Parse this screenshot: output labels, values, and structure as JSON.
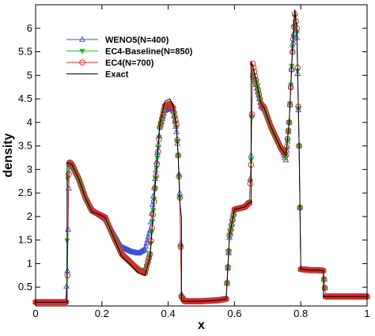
{
  "chart_data": {
    "type": "line",
    "title": "",
    "xlabel": "x",
    "ylabel": "density",
    "xlim": [
      0,
      1
    ],
    "ylim": [
      0.1,
      6.5
    ],
    "xticks": [
      "0",
      "0.2",
      "0.4",
      "0.6",
      "0.8",
      "1"
    ],
    "xtick_values": [
      0,
      0.2,
      0.4,
      0.6,
      0.8,
      1
    ],
    "yticks": [
      "0.5",
      "1",
      "1.5",
      "2",
      "2.5",
      "3",
      "3.5",
      "4",
      "4.5",
      "5",
      "5.5",
      "6"
    ],
    "ytick_values": [
      0.5,
      1,
      1.5,
      2,
      2.5,
      3,
      3.5,
      4,
      4.5,
      5,
      5.5,
      6
    ],
    "grid": false,
    "legend_position": "top-left",
    "series": [
      {
        "name": "WENO5(N=400)",
        "color": "#3a4fd6",
        "marker": "triangle-up",
        "x": [
          0,
          0.05,
          0.09,
          0.096,
          0.1,
          0.103,
          0.11,
          0.13,
          0.15,
          0.17,
          0.19,
          0.21,
          0.23,
          0.26,
          0.29,
          0.31,
          0.33,
          0.345,
          0.36,
          0.375,
          0.39,
          0.405,
          0.415,
          0.425,
          0.43,
          0.435,
          0.44,
          0.45,
          0.5,
          0.55,
          0.575,
          0.585,
          0.6,
          0.63,
          0.645,
          0.65,
          0.655,
          0.665,
          0.68,
          0.69,
          0.71,
          0.74,
          0.755,
          0.765,
          0.775,
          0.782,
          0.788,
          0.795,
          0.8,
          0.83,
          0.85,
          0.868,
          0.875,
          0.9,
          1
        ],
        "y": [
          0.18,
          0.18,
          0.18,
          0.85,
          2.6,
          3.1,
          3.08,
          2.82,
          2.45,
          2.15,
          2.05,
          1.95,
          1.72,
          1.35,
          1.25,
          1.22,
          1.3,
          1.7,
          2.8,
          3.9,
          4.25,
          4.32,
          4.25,
          3.8,
          3.3,
          2.5,
          0.35,
          0.2,
          0.2,
          0.22,
          0.25,
          1.55,
          2.15,
          2.2,
          2.3,
          3.3,
          5.0,
          4.8,
          4.35,
          4.28,
          3.95,
          3.5,
          3.2,
          4.0,
          5.5,
          6.1,
          5.8,
          3.5,
          0.88,
          0.86,
          0.86,
          0.85,
          0.3,
          0.3,
          0.3
        ]
      },
      {
        "name": "EC4-Baseline(N=850)",
        "color": "#1bbf2f",
        "marker": "triangle-down",
        "x": [
          0,
          0.05,
          0.093,
          0.097,
          0.1,
          0.104,
          0.11,
          0.13,
          0.15,
          0.17,
          0.19,
          0.21,
          0.23,
          0.26,
          0.29,
          0.31,
          0.33,
          0.345,
          0.36,
          0.375,
          0.39,
          0.405,
          0.415,
          0.425,
          0.43,
          0.435,
          0.44,
          0.45,
          0.5,
          0.55,
          0.575,
          0.585,
          0.6,
          0.63,
          0.645,
          0.65,
          0.655,
          0.665,
          0.68,
          0.69,
          0.71,
          0.74,
          0.755,
          0.765,
          0.775,
          0.782,
          0.788,
          0.795,
          0.8,
          0.83,
          0.85,
          0.868,
          0.875,
          0.9,
          1
        ],
        "y": [
          0.18,
          0.18,
          0.18,
          2.8,
          3.1,
          3.15,
          3.1,
          2.8,
          2.4,
          2.12,
          2.05,
          1.98,
          1.65,
          1.2,
          1.0,
          0.88,
          0.82,
          1.2,
          2.6,
          3.9,
          4.35,
          4.4,
          4.3,
          3.9,
          3.3,
          2.4,
          0.3,
          0.2,
          0.2,
          0.22,
          0.25,
          1.6,
          2.15,
          2.2,
          2.3,
          3.2,
          5.0,
          4.85,
          4.4,
          4.3,
          3.9,
          3.45,
          3.25,
          4.0,
          5.6,
          6.25,
          5.9,
          3.5,
          0.88,
          0.86,
          0.86,
          0.85,
          0.3,
          0.3,
          0.3
        ]
      },
      {
        "name": "EC4(N=700)",
        "color": "#d62a2a",
        "marker": "circle",
        "x": [
          0,
          0.05,
          0.092,
          0.096,
          0.1,
          0.103,
          0.11,
          0.13,
          0.15,
          0.17,
          0.19,
          0.21,
          0.23,
          0.26,
          0.29,
          0.31,
          0.33,
          0.345,
          0.36,
          0.375,
          0.39,
          0.405,
          0.415,
          0.425,
          0.43,
          0.435,
          0.44,
          0.45,
          0.5,
          0.55,
          0.575,
          0.585,
          0.6,
          0.63,
          0.645,
          0.65,
          0.655,
          0.665,
          0.68,
          0.69,
          0.71,
          0.74,
          0.755,
          0.765,
          0.775,
          0.782,
          0.788,
          0.795,
          0.8,
          0.83,
          0.85,
          0.868,
          0.875,
          0.9,
          1
        ],
        "y": [
          0.18,
          0.18,
          0.18,
          0.75,
          2.9,
          3.15,
          3.1,
          2.8,
          2.4,
          2.12,
          2.05,
          1.98,
          1.65,
          1.2,
          1.0,
          0.86,
          0.8,
          1.2,
          2.6,
          3.9,
          4.35,
          4.4,
          4.3,
          3.95,
          3.3,
          2.4,
          0.3,
          0.2,
          0.2,
          0.22,
          0.25,
          1.6,
          2.15,
          2.2,
          2.3,
          3.1,
          5.25,
          4.9,
          4.4,
          4.3,
          3.9,
          3.45,
          3.3,
          4.0,
          5.5,
          6.3,
          6.0,
          3.5,
          0.88,
          0.86,
          0.86,
          0.85,
          0.3,
          0.3,
          0.3
        ]
      },
      {
        "name": "Exact",
        "color": "#000000",
        "marker": "none",
        "x": [
          0,
          0.05,
          0.095,
          0.0951,
          0.11,
          0.13,
          0.15,
          0.17,
          0.19,
          0.21,
          0.23,
          0.26,
          0.29,
          0.31,
          0.33,
          0.345,
          0.36,
          0.375,
          0.39,
          0.405,
          0.415,
          0.425,
          0.43,
          0.435,
          0.44,
          0.4401,
          0.5,
          0.55,
          0.575,
          0.585,
          0.6,
          0.63,
          0.645,
          0.65,
          0.6501,
          0.665,
          0.68,
          0.69,
          0.71,
          0.74,
          0.755,
          0.765,
          0.775,
          0.782,
          0.788,
          0.795,
          0.8,
          0.83,
          0.85,
          0.868,
          0.8681,
          0.9,
          1
        ],
        "y": [
          0.18,
          0.18,
          0.18,
          3.15,
          3.1,
          2.8,
          2.4,
          2.1,
          2.05,
          1.98,
          1.65,
          1.15,
          0.95,
          0.8,
          0.75,
          1.1,
          2.6,
          4.0,
          4.45,
          4.5,
          4.35,
          3.9,
          3.3,
          2.3,
          2.0,
          0.2,
          0.2,
          0.22,
          0.25,
          1.6,
          2.15,
          2.2,
          2.3,
          2.3,
          5.3,
          4.9,
          4.4,
          4.3,
          3.9,
          3.45,
          3.3,
          4.0,
          5.6,
          6.4,
          6.0,
          3.5,
          0.88,
          0.86,
          0.86,
          0.85,
          0.3,
          0.3,
          0.3
        ]
      }
    ]
  }
}
